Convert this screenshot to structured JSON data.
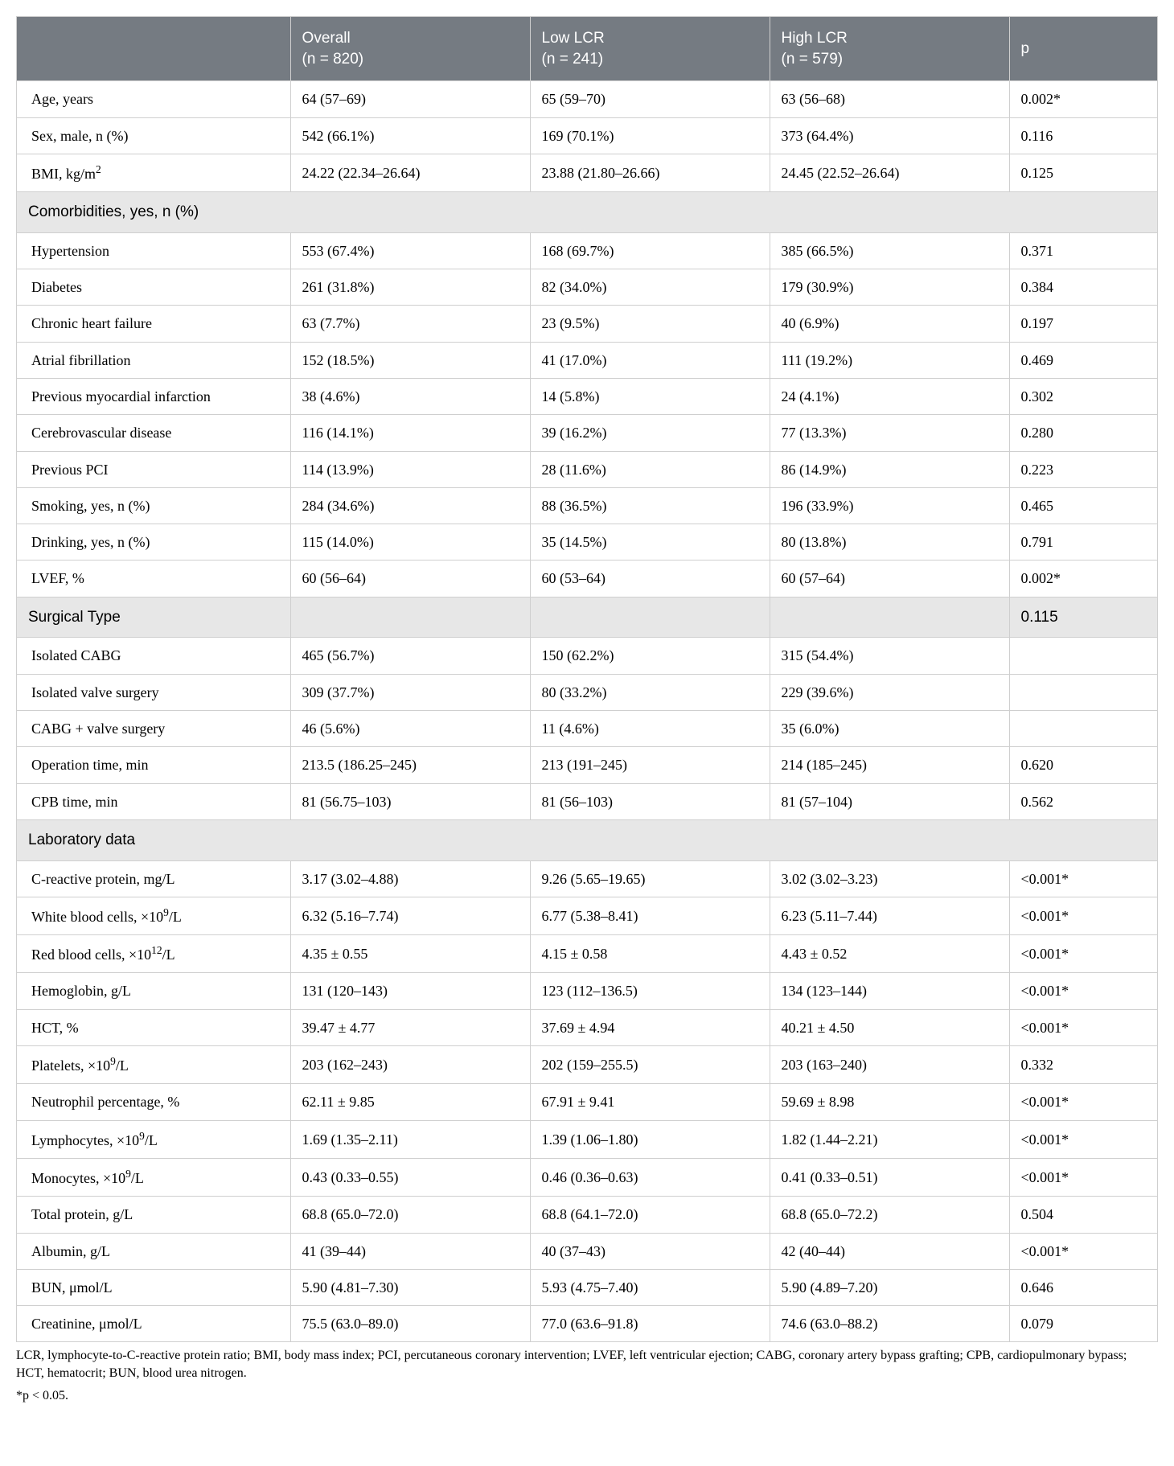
{
  "colors": {
    "header_bg": "#757b82",
    "header_text": "#ffffff",
    "section_bg": "#e7e7e7",
    "border": "#cfcfcf",
    "body_text": "#000000",
    "page_bg": "#ffffff"
  },
  "typography": {
    "body_font": "Times New Roman",
    "header_font": "Arial",
    "body_fontsize_pt": 13,
    "header_fontsize_pt": 14
  },
  "table": {
    "type": "table",
    "column_widths_pct": [
      24,
      21,
      21,
      21,
      13
    ],
    "headers": [
      {
        "line1": "",
        "line2": ""
      },
      {
        "line1": "Overall",
        "line2": "(n = 820)"
      },
      {
        "line1": "Low LCR",
        "line2": "(n = 241)"
      },
      {
        "line1": "High LCR",
        "line2": "(n = 579)"
      },
      {
        "line1": "p",
        "line2": ""
      }
    ],
    "body": [
      {
        "kind": "data",
        "cells": [
          "Age, years",
          "64 (57–69)",
          "65 (59–70)",
          "63 (56–68)",
          "0.002*"
        ]
      },
      {
        "kind": "data",
        "cells": [
          "Sex, male, n (%)",
          "542 (66.1%)",
          "169 (70.1%)",
          "373 (64.4%)",
          "0.116"
        ]
      },
      {
        "kind": "data",
        "label_html": "BMI, kg/m<sup>2</sup>",
        "cells": [
          "BMI, kg/m2",
          "24.22 (22.34–26.64)",
          "23.88 (21.80–26.66)",
          "24.45 (22.52–26.64)",
          "0.125"
        ]
      },
      {
        "kind": "section_span",
        "title": "Comorbidities, yes, n (%)"
      },
      {
        "kind": "data",
        "cells": [
          "Hypertension",
          "553 (67.4%)",
          "168 (69.7%)",
          "385 (66.5%)",
          "0.371"
        ]
      },
      {
        "kind": "data",
        "cells": [
          "Diabetes",
          "261 (31.8%)",
          "82 (34.0%)",
          "179 (30.9%)",
          "0.384"
        ]
      },
      {
        "kind": "data",
        "cells": [
          "Chronic heart failure",
          "63 (7.7%)",
          "23 (9.5%)",
          "40 (6.9%)",
          "0.197"
        ]
      },
      {
        "kind": "data",
        "cells": [
          "Atrial fibrillation",
          "152 (18.5%)",
          "41 (17.0%)",
          "111 (19.2%)",
          "0.469"
        ]
      },
      {
        "kind": "data",
        "cells": [
          "Previous myocardial infarction",
          "38 (4.6%)",
          "14 (5.8%)",
          "24 (4.1%)",
          "0.302"
        ]
      },
      {
        "kind": "data",
        "cells": [
          "Cerebrovascular disease",
          "116 (14.1%)",
          "39 (16.2%)",
          "77 (13.3%)",
          "0.280"
        ]
      },
      {
        "kind": "data",
        "cells": [
          "Previous PCI",
          "114 (13.9%)",
          "28 (11.6%)",
          "86 (14.9%)",
          "0.223"
        ]
      },
      {
        "kind": "data",
        "cells": [
          "Smoking, yes, n (%)",
          "284 (34.6%)",
          "88 (36.5%)",
          "196 (33.9%)",
          "0.465"
        ]
      },
      {
        "kind": "data",
        "cells": [
          "Drinking, yes, n (%)",
          "115 (14.0%)",
          "35 (14.5%)",
          "80 (13.8%)",
          "0.791"
        ]
      },
      {
        "kind": "data",
        "cells": [
          "LVEF, %",
          "60 (56–64)",
          "60 (53–64)",
          "60 (57–64)",
          "0.002*"
        ]
      },
      {
        "kind": "section_cells",
        "cells": [
          "Surgical Type",
          "",
          "",
          "",
          "0.115"
        ]
      },
      {
        "kind": "data",
        "cells": [
          "Isolated CABG",
          "465 (56.7%)",
          "150 (62.2%)",
          "315 (54.4%)",
          ""
        ]
      },
      {
        "kind": "data",
        "cells": [
          "Isolated valve surgery",
          "309 (37.7%)",
          "80 (33.2%)",
          "229 (39.6%)",
          ""
        ]
      },
      {
        "kind": "data",
        "cells": [
          "CABG + valve surgery",
          "46 (5.6%)",
          "11 (4.6%)",
          "35 (6.0%)",
          ""
        ]
      },
      {
        "kind": "data",
        "cells": [
          "Operation time, min",
          "213.5 (186.25–245)",
          "213 (191–245)",
          "214 (185–245)",
          "0.620"
        ]
      },
      {
        "kind": "data",
        "cells": [
          "CPB time, min",
          "81 (56.75–103)",
          "81 (56–103)",
          "81 (57–104)",
          "0.562"
        ]
      },
      {
        "kind": "section_span",
        "title": "Laboratory data"
      },
      {
        "kind": "data",
        "cells": [
          "C-reactive protein, mg/L",
          "3.17 (3.02–4.88)",
          "9.26 (5.65–19.65)",
          "3.02 (3.02–3.23)",
          "<0.001*"
        ]
      },
      {
        "kind": "data",
        "label_html": "White blood cells, ×10<sup>9</sup>/L",
        "cells": [
          "White blood cells, ×10^9/L",
          "6.32 (5.16–7.74)",
          "6.77 (5.38–8.41)",
          "6.23 (5.11–7.44)",
          "<0.001*"
        ]
      },
      {
        "kind": "data",
        "label_html": "Red blood cells, ×10<sup>12</sup>/L",
        "cells": [
          "Red blood cells, ×10^12/L",
          "4.35 ± 0.55",
          "4.15 ± 0.58",
          "4.43 ± 0.52",
          "<0.001*"
        ]
      },
      {
        "kind": "data",
        "cells": [
          "Hemoglobin, g/L",
          "131 (120–143)",
          "123 (112–136.5)",
          "134 (123–144)",
          "<0.001*"
        ]
      },
      {
        "kind": "data",
        "cells": [
          "HCT, %",
          "39.47 ± 4.77",
          "37.69 ± 4.94",
          "40.21 ± 4.50",
          "<0.001*"
        ]
      },
      {
        "kind": "data",
        "label_html": "Platelets, ×10<sup>9</sup>/L",
        "cells": [
          "Platelets, ×10^9/L",
          "203 (162–243)",
          "202 (159–255.5)",
          "203 (163–240)",
          "0.332"
        ]
      },
      {
        "kind": "data",
        "cells": [
          "Neutrophil percentage, %",
          "62.11 ± 9.85",
          "67.91 ± 9.41",
          "59.69 ± 8.98",
          "<0.001*"
        ]
      },
      {
        "kind": "data",
        "label_html": "Lymphocytes, ×10<sup>9</sup>/L",
        "cells": [
          "Lymphocytes, ×10^9/L",
          "1.69 (1.35–2.11)",
          "1.39 (1.06–1.80)",
          "1.82 (1.44–2.21)",
          "<0.001*"
        ]
      },
      {
        "kind": "data",
        "label_html": "Monocytes, ×10<sup>9</sup>/L",
        "cells": [
          "Monocytes, ×10^9/L",
          "0.43 (0.33–0.55)",
          "0.46 (0.36–0.63)",
          "0.41 (0.33–0.51)",
          "<0.001*"
        ]
      },
      {
        "kind": "data",
        "cells": [
          "Total protein, g/L",
          "68.8 (65.0–72.0)",
          "68.8 (64.1–72.0)",
          "68.8 (65.0–72.2)",
          "0.504"
        ]
      },
      {
        "kind": "data",
        "cells": [
          "Albumin, g/L",
          "41 (39–44)",
          "40 (37–43)",
          "42 (40–44)",
          "<0.001*"
        ]
      },
      {
        "kind": "data",
        "cells": [
          "BUN, μmol/L",
          "5.90 (4.81–7.30)",
          "5.93 (4.75–7.40)",
          "5.90 (4.89–7.20)",
          "0.646"
        ]
      },
      {
        "kind": "data",
        "cells": [
          "Creatinine, μmol/L",
          "75.5 (63.0–89.0)",
          "77.0 (63.6–91.8)",
          "74.6 (63.0–88.2)",
          "0.079"
        ]
      }
    ]
  },
  "footnotes": {
    "abbr": "LCR, lymphocyte-to-C-reactive protein ratio; BMI, body mass index; PCI, percutaneous coronary intervention; LVEF, left ventricular ejection; CABG, coronary artery bypass grafting; CPB, cardiopulmonary bypass; HCT, hematocrit; BUN, blood urea nitrogen.",
    "sig": "*p < 0.05."
  }
}
